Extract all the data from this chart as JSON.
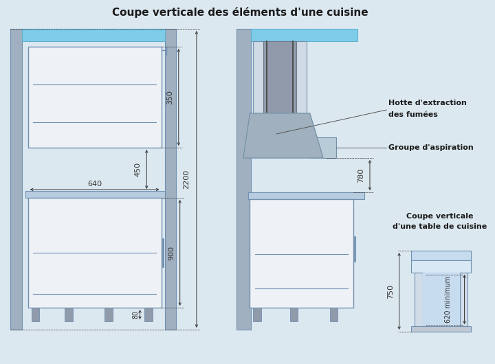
{
  "title": "Coupe verticale des éléments d'une cuisine",
  "bg_color": "#dce8f0",
  "wall_color": "#a0b0c0",
  "cabinet_fill": "#eef2f6",
  "cabinet_edge": "#7090b0",
  "ceiling_color": "#7ecce8",
  "ceiling_edge": "#60b0d0",
  "label_color": "#1a1a1a",
  "dim_color": "#333333",
  "annotation_line_color": "#555555",
  "table_fill": "#c8dcf0",
  "countertop_color": "#b8cce0",
  "foot_color": "#909aaa",
  "annotations": {
    "dim_350": "350",
    "dim_450": "450",
    "dim_640": "640",
    "dim_900": "900",
    "dim_80": "80",
    "dim_2200": "2200",
    "dim_780": "780",
    "dim_750": "750",
    "dim_620": "620 minimum",
    "label_hotte1": "Hotte d'extraction",
    "label_hotte2": "des fumées",
    "label_groupe": "Groupe d'aspiration",
    "label_table1": "Coupe verticale",
    "label_table2": "d'une table de cuisine"
  }
}
